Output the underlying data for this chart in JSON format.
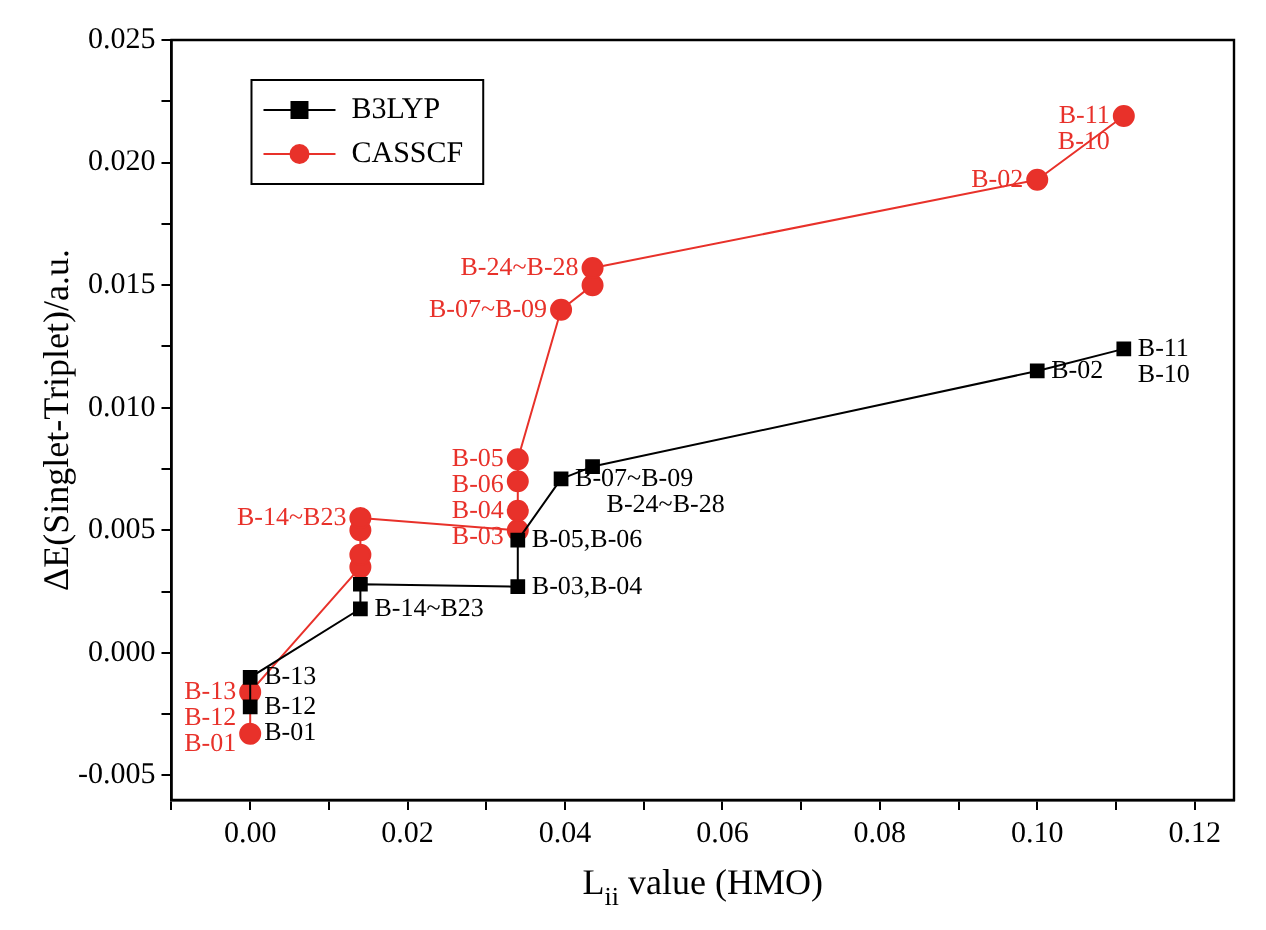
{
  "chart_data": {
    "type": "line",
    "xlabel": "L$_{ii}$ value (HMO)",
    "ylabel": "ΔE(Singlet-Triplet)/a.u.",
    "series": [
      {
        "name": "B3LYP",
        "color": "#000000",
        "marker": "square",
        "x": [
          0,
          0,
          0.014,
          0.014,
          0.034,
          0.034,
          0.0395,
          0.0435,
          0.1,
          0.111
        ],
        "values": [
          -0.0022,
          -0.001,
          0.0018,
          0.0028,
          0.0027,
          0.0046,
          0.0071,
          0.0076,
          0.0115,
          0.0124
        ]
      },
      {
        "name": "CASSCF",
        "color": "#e8312a",
        "marker": "circle",
        "x": [
          0,
          0,
          0.014,
          0.014,
          0.014,
          0.014,
          0.034,
          0.034,
          0.034,
          0.034,
          0.0395,
          0.0435,
          0.0435,
          0.1,
          0.111
        ],
        "values": [
          -0.0033,
          -0.0016,
          0.0035,
          0.004,
          0.005,
          0.0055,
          0.005,
          0.0058,
          0.007,
          0.0079,
          0.014,
          0.015,
          0.0157,
          0.0193,
          0.0219
        ]
      }
    ],
    "xlim": [
      -0.01,
      0.125
    ],
    "ylim": [
      -0.006,
      0.025
    ],
    "xticks": [
      {
        "value": -0.01,
        "label": null
      },
      {
        "value": 0,
        "label": "0.00"
      },
      {
        "value": 0.01,
        "label": null
      },
      0.02,
      {
        "value": 0.03,
        "label": null
      },
      0.04,
      {
        "value": 0.05,
        "label": null
      },
      0.06,
      {
        "value": 0.07,
        "label": null
      },
      0.08,
      {
        "value": 0.09,
        "label": null
      },
      {
        "value": 0.1,
        "label": "0.10"
      },
      {
        "value": 0.11,
        "label": null
      },
      0.12
    ],
    "yticks": [
      -0.005,
      {
        "value": -0.0025,
        "label": null
      },
      {
        "value": 0,
        "label": "0.000"
      },
      {
        "value": 0.0025,
        "label": null
      },
      0.005,
      {
        "value": 0.0075,
        "label": null
      },
      {
        "value": 0.01,
        "label": "0.010"
      },
      {
        "value": 0.0125,
        "label": null
      },
      0.015,
      {
        "value": 0.0175,
        "label": null
      },
      {
        "value": 0.02,
        "label": "0.020"
      },
      {
        "value": 0.0225,
        "label": null
      },
      0.025
    ],
    "grid": false,
    "legend": "top left",
    "annotations": [
      {
        "text": "B-13",
        "x": 0,
        "y": -0.001
      },
      {
        "text": "B-12",
        "x": 0,
        "y": -0.0022
      },
      {
        "text": "B-01",
        "x": 0,
        "y": -0.0022
      },
      {
        "text": "B-14~B23",
        "x": 0.014,
        "y": 0.0018
      },
      {
        "text": "B-03,B-04",
        "x": 0.034,
        "y": 0.0027
      },
      {
        "text": "B-05,B-06",
        "x": 0.034,
        "y": 0.0046
      },
      {
        "text": "B-07~B-09",
        "x": 0.0395,
        "y": 0.0071
      },
      {
        "text": "B-24~B-28",
        "x": 0.0435,
        "y": 0.0076
      },
      {
        "text": "B-02",
        "x": 0.1,
        "y": 0.0115
      },
      {
        "text": "B-11",
        "x": 0.111,
        "y": 0.0124
      },
      {
        "text": "B-10",
        "x": 0.111,
        "y": 0.0124
      },
      {
        "text": "B-13",
        "x": 0,
        "y": -0.0016
      },
      {
        "text": "B-12",
        "x": 0,
        "y": -0.0016
      },
      {
        "text": "B-01",
        "x": 0,
        "y": -0.0033
      },
      {
        "text": "B-14~B23",
        "x": 0.014,
        "y": 0.0055
      },
      {
        "text": "B-05",
        "x": 0.034,
        "y": 0.0079
      },
      {
        "text": "B-06",
        "x": 0.034,
        "y": 0.0079
      },
      {
        "text": "B-04",
        "x": 0.034,
        "y": 0.007
      },
      {
        "text": "B-03",
        "x": 0.034,
        "y": 0.0058
      },
      {
        "text": "B-07~B-09",
        "x": 0.0395,
        "y": 0.014
      },
      {
        "text": "B-24~B-28",
        "x": 0.0435,
        "y": 0.0157
      },
      {
        "text": "B-02",
        "x": 0.1,
        "y": 0.0193
      },
      {
        "text": "B-11",
        "x": 0.111,
        "y": 0.0219
      },
      {
        "text": "B-10",
        "x": 0.111,
        "y": 0.0219
      }
    ]
  }
}
